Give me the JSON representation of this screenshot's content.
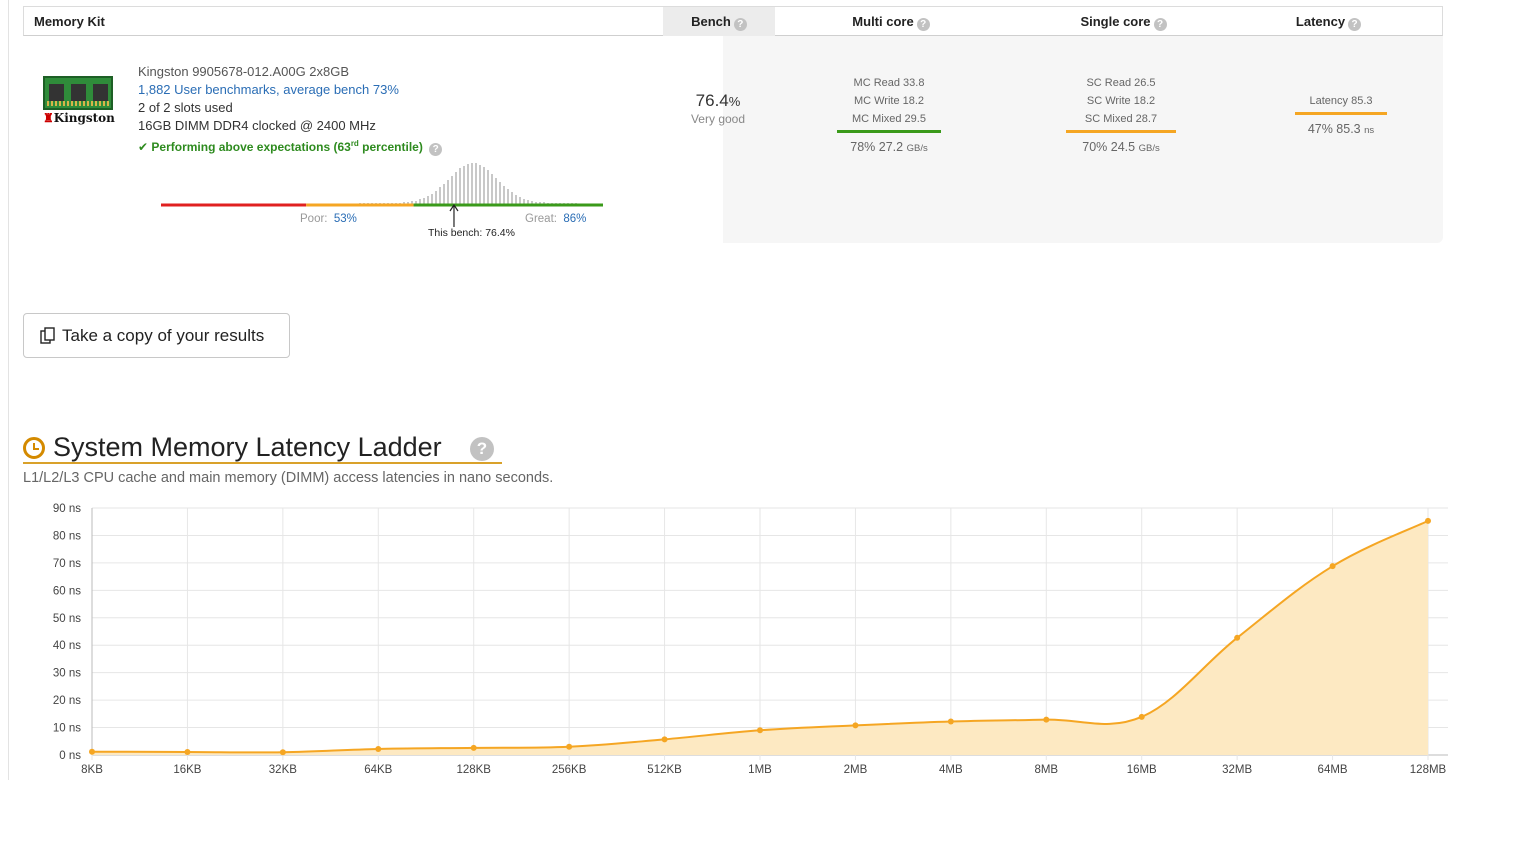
{
  "table": {
    "headers": {
      "kit": "Memory Kit",
      "bench": "Bench",
      "multi_core": "Multi core",
      "single_core": "Single core",
      "latency": "Latency"
    },
    "help_glyph": "?",
    "logo": {
      "icon": "ram-module-icon",
      "brand": "Kingston"
    },
    "kit": {
      "name": "Kingston 9905678-012.A00G 2x8GB",
      "benchmarks_link": "1,882 User benchmarks, average bench 73%",
      "slots": "2 of 2 slots used",
      "spec": "16GB DIMM DDR4 clocked @ 2400 MHz",
      "perf_check": "✔",
      "perf_prefix": "Performing above expectations (63",
      "perf_sup": "rd",
      "perf_suffix": " percentile)"
    },
    "distribution": {
      "poor_label": "Poor:",
      "poor_value": "53%",
      "great_label": "Great:",
      "great_value": "86%",
      "this_bench": "This bench: 76.4%",
      "this_bench_value": 76.4,
      "poor_threshold": 53,
      "great_threshold": 86,
      "colors": {
        "low": "#e02020",
        "mid": "#f5a623",
        "high": "#3a9a1a"
      }
    },
    "bench": {
      "value": "76.4",
      "unit": "%",
      "label": "Very good"
    },
    "multi_core": {
      "read": "MC Read 33.8",
      "write": "MC Write 18.2",
      "mixed": "MC Mixed 29.5",
      "summary": "78% 27.2",
      "unit": "GB/s",
      "bar_color": "#3a9a1a",
      "bar_fraction": 0.78
    },
    "single_core": {
      "read": "SC Read 26.5",
      "write": "SC Write 18.2",
      "mixed": "SC Mixed 28.7",
      "summary": "70% 24.5",
      "unit": "GB/s",
      "bar_color": "#f5a623",
      "bar_fraction": 0.7
    },
    "latency": {
      "value": "Latency 85.3",
      "summary": "47% 85.3",
      "unit": "ns",
      "bar_color": "#f5a623",
      "bar_fraction": 0.47
    }
  },
  "copy_button": {
    "label": "Take a copy of your results",
    "icon": "copy-icon"
  },
  "section": {
    "icon": "clock-icon",
    "title": "System Memory Latency Ladder",
    "help_glyph": "?",
    "subtitle": "L1/L2/L3 CPU cache and main memory (DIMM) access latencies in nano seconds."
  },
  "chart_data": {
    "type": "area",
    "categories": [
      "8KB",
      "16KB",
      "32KB",
      "64KB",
      "128KB",
      "256KB",
      "512KB",
      "1MB",
      "2MB",
      "4MB",
      "8MB",
      "16MB",
      "32MB",
      "64MB",
      "128MB"
    ],
    "values": [
      1.2,
      1.1,
      1.0,
      2.2,
      2.6,
      3.0,
      5.7,
      9.0,
      10.8,
      12.2,
      12.9,
      13.9,
      42.7,
      68.8,
      85.3
    ],
    "yticks": [
      "0 ns",
      "10 ns",
      "20 ns",
      "30 ns",
      "40 ns",
      "50 ns",
      "60 ns",
      "70 ns",
      "80 ns",
      "90 ns"
    ],
    "ylim": [
      0,
      90
    ],
    "grid": true,
    "line_color": "#f5a623",
    "fill_color": "#fde9c2"
  }
}
